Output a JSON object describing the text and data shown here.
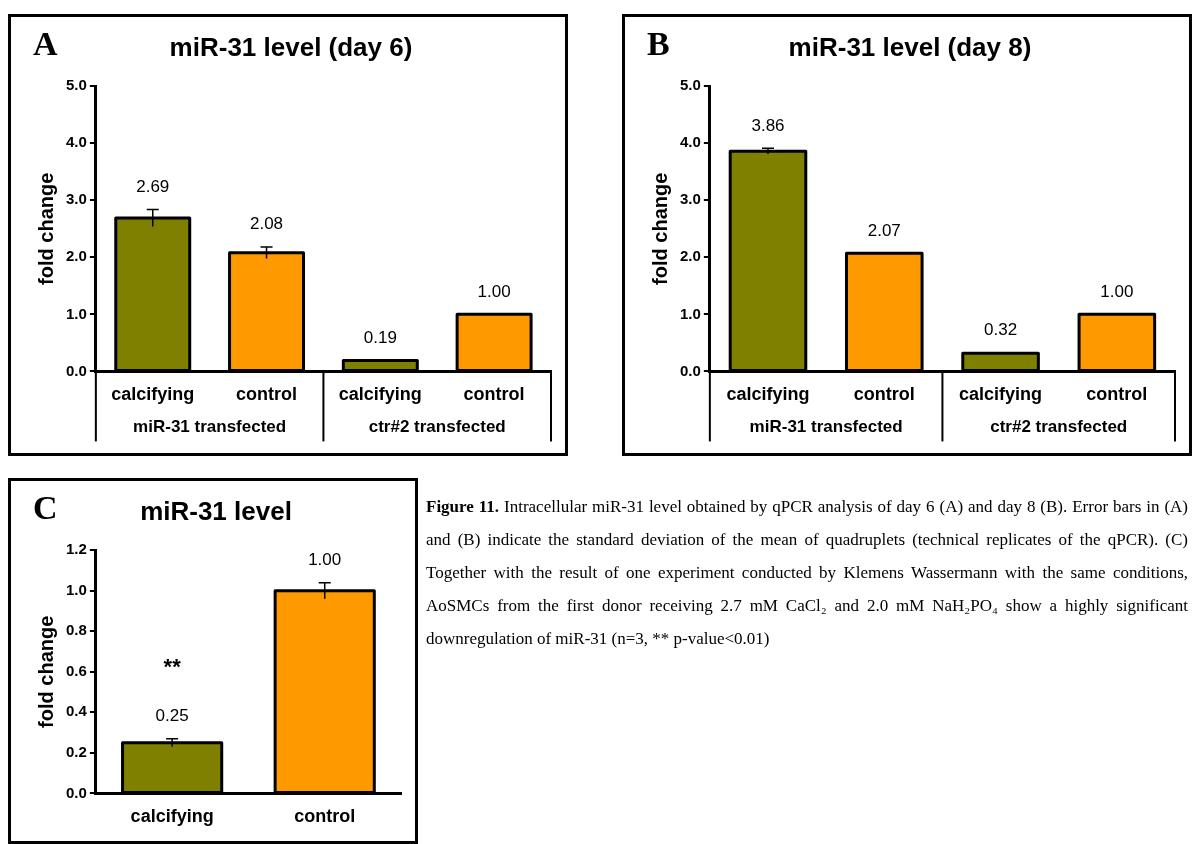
{
  "chart_data": [
    {
      "type": "bar",
      "title": "miR-31 level (day 6)",
      "ylabel": "fold change",
      "categories": [
        "calcifying",
        "control",
        "calcifying",
        "control"
      ],
      "values": [
        2.69,
        2.08,
        0.19,
        1.0
      ],
      "value_labels": [
        "2.69",
        "2.08",
        "0.19",
        "1.00"
      ],
      "colors": [
        "#808000",
        "#ff9900",
        "#808000",
        "#ff9900"
      ],
      "errors": [
        0.15,
        0.1,
        null,
        null
      ],
      "ylim": [
        0,
        5
      ],
      "yticks": [
        {
          "value": 0,
          "label": "0.0"
        },
        {
          "value": 1,
          "label": "1.0"
        },
        {
          "value": 2,
          "label": "2.0"
        },
        {
          "value": 3,
          "label": "3.0"
        },
        {
          "value": 4,
          "label": "4.0"
        },
        {
          "value": 5,
          "label": "5.0"
        }
      ],
      "grid": false,
      "annotations": [
        "A",
        "miR-31 transfected",
        "ctr#2 transfected"
      ]
    },
    {
      "type": "bar",
      "title": "miR-31 level (day 8)",
      "ylabel": "fold change",
      "categories": [
        "calcifying",
        "control",
        "calcifying",
        "control"
      ],
      "values": [
        3.86,
        2.07,
        0.32,
        1.0
      ],
      "value_labels": [
        "3.86",
        "2.07",
        "0.32",
        "1.00"
      ],
      "colors": [
        "#808000",
        "#ff9900",
        "#808000",
        "#ff9900"
      ],
      "errors": [
        0.05,
        null,
        null,
        null
      ],
      "ylim": [
        0,
        5
      ],
      "yticks": [
        {
          "value": 0,
          "label": "0.0"
        },
        {
          "value": 1,
          "label": "1.0"
        },
        {
          "value": 2,
          "label": "2.0"
        },
        {
          "value": 3,
          "label": "3.0"
        },
        {
          "value": 4,
          "label": "4.0"
        },
        {
          "value": 5,
          "label": "5.0"
        }
      ],
      "grid": false,
      "annotations": [
        "B",
        "miR-31 transfected",
        "ctr#2 transfected"
      ]
    },
    {
      "type": "bar",
      "title": "miR-31 level",
      "ylabel": "fold change",
      "categories": [
        "calcifying",
        "control"
      ],
      "values": [
        0.25,
        1.0
      ],
      "value_labels": [
        "0.25",
        "1.00"
      ],
      "colors": [
        "#808000",
        "#ff9900"
      ],
      "errors": [
        0.02,
        0.04
      ],
      "ylim": [
        0,
        1.2
      ],
      "yticks": [
        {
          "value": 0,
          "label": "0.0"
        },
        {
          "value": 0.2,
          "label": "0.2"
        },
        {
          "value": 0.4,
          "label": "0.4"
        },
        {
          "value": 0.6,
          "label": "0.6"
        },
        {
          "value": 0.8,
          "label": "0.8"
        },
        {
          "value": 1,
          "label": "1.0"
        },
        {
          "value": 1.2,
          "label": "1.2"
        }
      ],
      "grid": false,
      "annotations": [
        "C",
        {
          "text": "**",
          "x": "calcifying",
          "y": 0.25
        }
      ]
    },
    {
      "type": "other",
      "title": "Figure 11.",
      "annotations": [
        "Intracellular miR-31 level obtained by qPCR analysis of day 6 (A) and day 8 (B). Error bars in (A) and (B) indicate the standard deviation of the mean of quadruplets (technical replicates of the qPCR). (C) Together with the result of one experiment conducted by Klemens Wassermann with the same conditions, AoSMCs from the first donor receiving 2.7 mM CaCl₂ and 2.0 mM NaH₂PO₄ show a highly significant downregulation of miR-31 (n=3, ** p-value<0.01)"
      ]
    }
  ]
}
